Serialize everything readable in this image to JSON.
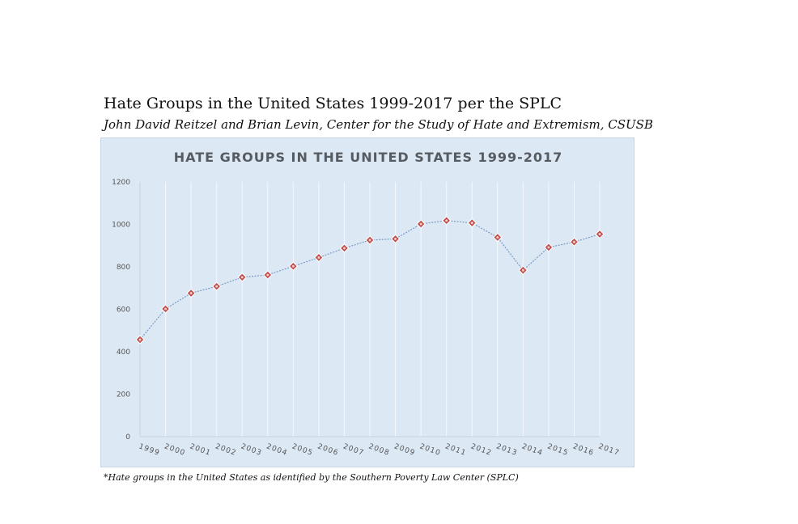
{
  "header": {
    "title": "Hate Groups in the United States 1999-2017 per the SPLC",
    "subtitle": "John David Reitzel and Brian Levin, Center for the Study of Hate and Extremism, CSUSB"
  },
  "footnote": "*Hate groups in the United States as identified by the Southern Poverty Law Center (SPLC)",
  "colors": {
    "chart_background": "#dde8f5",
    "line": "#7a9cc6",
    "marker_fill": "#c0504d",
    "marker_border": "#ffffff",
    "gridline": "#f5f8fc"
  },
  "chart_data": {
    "type": "line",
    "title": "HATE GROUPS IN THE UNITED STATES 1999-2017",
    "xlabel": "",
    "ylabel": "",
    "categories": [
      "1999",
      "2000",
      "2001",
      "2002",
      "2003",
      "2004",
      "2005",
      "2006",
      "2007",
      "2008",
      "2009",
      "2010",
      "2011",
      "2012",
      "2013",
      "2014",
      "2015",
      "2016",
      "2017"
    ],
    "series": [
      {
        "name": "Hate groups",
        "values": [
          457,
          602,
          676,
          708,
          751,
          762,
          803,
          844,
          888,
          926,
          932,
          1002,
          1018,
          1007,
          939,
          784,
          892,
          917,
          954
        ]
      }
    ],
    "ylim": [
      0,
      1200
    ],
    "yticks": [
      0,
      200,
      400,
      600,
      800,
      1000,
      1200
    ],
    "grid": "vertical"
  }
}
